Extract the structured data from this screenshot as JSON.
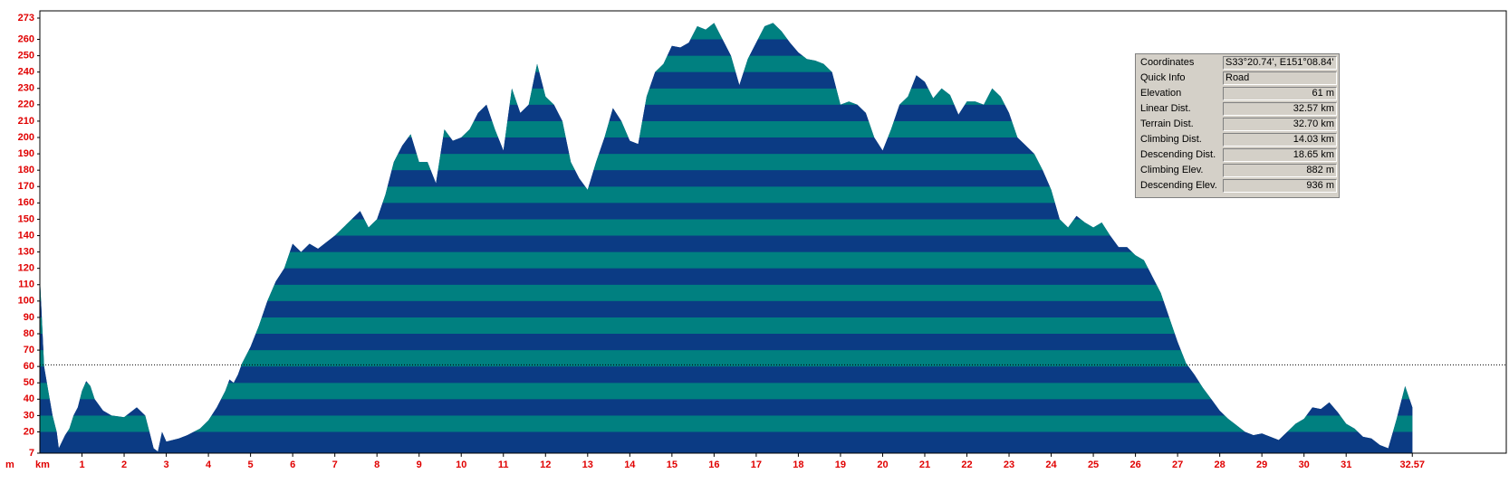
{
  "chart_data": {
    "type": "area",
    "xlabel": "km",
    "ylabel": "m",
    "xlim": [
      0,
      34.8
    ],
    "ylim": [
      7,
      273
    ],
    "xticks": [
      1,
      2,
      3,
      4,
      5,
      6,
      7,
      8,
      9,
      10,
      11,
      12,
      13,
      14,
      15,
      16,
      17,
      18,
      19,
      20,
      21,
      22,
      23,
      24,
      25,
      26,
      27,
      28,
      29,
      30,
      31,
      32.57
    ],
    "yticks": [
      7,
      20,
      30,
      40,
      50,
      60,
      70,
      80,
      90,
      100,
      110,
      120,
      130,
      140,
      150,
      160,
      170,
      180,
      190,
      200,
      210,
      220,
      230,
      240,
      250,
      260,
      273
    ],
    "colors": [
      "#0b3b84",
      "#008080"
    ],
    "series": [
      {
        "x": [
          0,
          0.1,
          0.2,
          0.3,
          0.4,
          0.45,
          0.6,
          0.7,
          0.8,
          0.9,
          1.0,
          1.1,
          1.2,
          1.3,
          1.5,
          1.7,
          2.0,
          2.2,
          2.3,
          2.5,
          2.6,
          2.7,
          2.8,
          2.9,
          3.0,
          3.3,
          3.5,
          3.8,
          4.0,
          4.2,
          4.4,
          4.5,
          4.6,
          4.7,
          4.8,
          5.0,
          5.2,
          5.4,
          5.6,
          5.8,
          6.0,
          6.2,
          6.4,
          6.6,
          6.8,
          7.0,
          7.2,
          7.4,
          7.6,
          7.8,
          8.0,
          8.2,
          8.4,
          8.6,
          8.8,
          9.0,
          9.2,
          9.4,
          9.6,
          9.8,
          10.0,
          10.2,
          10.4,
          10.6,
          10.8,
          11.0,
          11.2,
          11.4,
          11.6,
          11.8,
          12.0,
          12.2,
          12.4,
          12.6,
          12.8,
          13.0,
          13.2,
          13.4,
          13.6,
          13.8,
          14.0,
          14.2,
          14.4,
          14.6,
          14.8,
          15.0,
          15.2,
          15.4,
          15.6,
          15.8,
          16.0,
          16.2,
          16.4,
          16.6,
          16.8,
          17.0,
          17.2,
          17.4,
          17.6,
          17.8,
          18.0,
          18.2,
          18.4,
          18.6,
          18.8,
          19.0,
          19.2,
          19.4,
          19.6,
          19.8,
          20.0,
          20.2,
          20.4,
          20.6,
          20.8,
          21.0,
          21.2,
          21.4,
          21.6,
          21.8,
          22.0,
          22.2,
          22.4,
          22.6,
          22.8,
          23.0,
          23.2,
          23.4,
          23.6,
          23.8,
          24.0,
          24.2,
          24.4,
          24.6,
          24.8,
          25.0,
          25.2,
          25.4,
          25.6,
          25.8,
          26.0,
          26.2,
          26.4,
          26.6,
          26.8,
          27.0,
          27.2,
          27.4,
          27.6,
          27.8,
          28.0,
          28.2,
          28.4,
          28.6,
          28.8,
          29.0,
          29.2,
          29.4,
          29.6,
          29.8,
          30.0,
          30.2,
          30.4,
          30.6,
          30.8,
          31.0,
          31.2,
          31.4,
          31.6,
          31.8,
          32.0,
          32.2,
          32.4,
          32.57
        ],
        "values": [
          115,
          60,
          45,
          30,
          20,
          10,
          18,
          22,
          30,
          35,
          45,
          51,
          48,
          40,
          33,
          30,
          29,
          33,
          35,
          30,
          20,
          10,
          8,
          20,
          14,
          16,
          18,
          22,
          27,
          35,
          45,
          52,
          50,
          55,
          62,
          72,
          85,
          100,
          112,
          120,
          135,
          130,
          135,
          132,
          136,
          140,
          145,
          150,
          155,
          145,
          150,
          165,
          185,
          195,
          202,
          185,
          185,
          172,
          205,
          198,
          200,
          205,
          215,
          220,
          205,
          192,
          230,
          215,
          220,
          245,
          225,
          220,
          210,
          185,
          175,
          168,
          185,
          200,
          218,
          210,
          198,
          196,
          225,
          240,
          245,
          256,
          255,
          258,
          268,
          266,
          270,
          260,
          250,
          232,
          248,
          258,
          268,
          270,
          265,
          258,
          252,
          248,
          247,
          245,
          240,
          220,
          222,
          220,
          215,
          200,
          192,
          205,
          220,
          225,
          238,
          234,
          224,
          230,
          226,
          214,
          222,
          222,
          220,
          230,
          225,
          215,
          200,
          195,
          190,
          180,
          168,
          150,
          145,
          152,
          148,
          145,
          148,
          140,
          133,
          133,
          128,
          125,
          115,
          105,
          90,
          75,
          62,
          55,
          47,
          40,
          33,
          28,
          24,
          20,
          18,
          19,
          17,
          15,
          20,
          25,
          28,
          35,
          34,
          38,
          32,
          25,
          22,
          17,
          16,
          12,
          10,
          28,
          48,
          35
        ]
      }
    ]
  },
  "info_panel": {
    "rows": [
      {
        "label": "Coordinates",
        "value": "S33°20.74', E151°08.84'"
      },
      {
        "label": "Quick Info",
        "value": "Road"
      },
      {
        "label": "Elevation",
        "value": "61",
        "unit": "m"
      },
      {
        "label": "Linear Dist.",
        "value": "32.57",
        "unit": "km"
      },
      {
        "label": "Terrain Dist.",
        "value": "32.70",
        "unit": "km"
      },
      {
        "label": "Climbing Dist.",
        "value": "14.03",
        "unit": "km"
      },
      {
        "label": "Descending Dist.",
        "value": "18.65",
        "unit": "km"
      },
      {
        "label": "Climbing Elev.",
        "value": "882",
        "unit": "m"
      },
      {
        "label": "Descending Elev.",
        "value": "936",
        "unit": "m"
      }
    ]
  }
}
